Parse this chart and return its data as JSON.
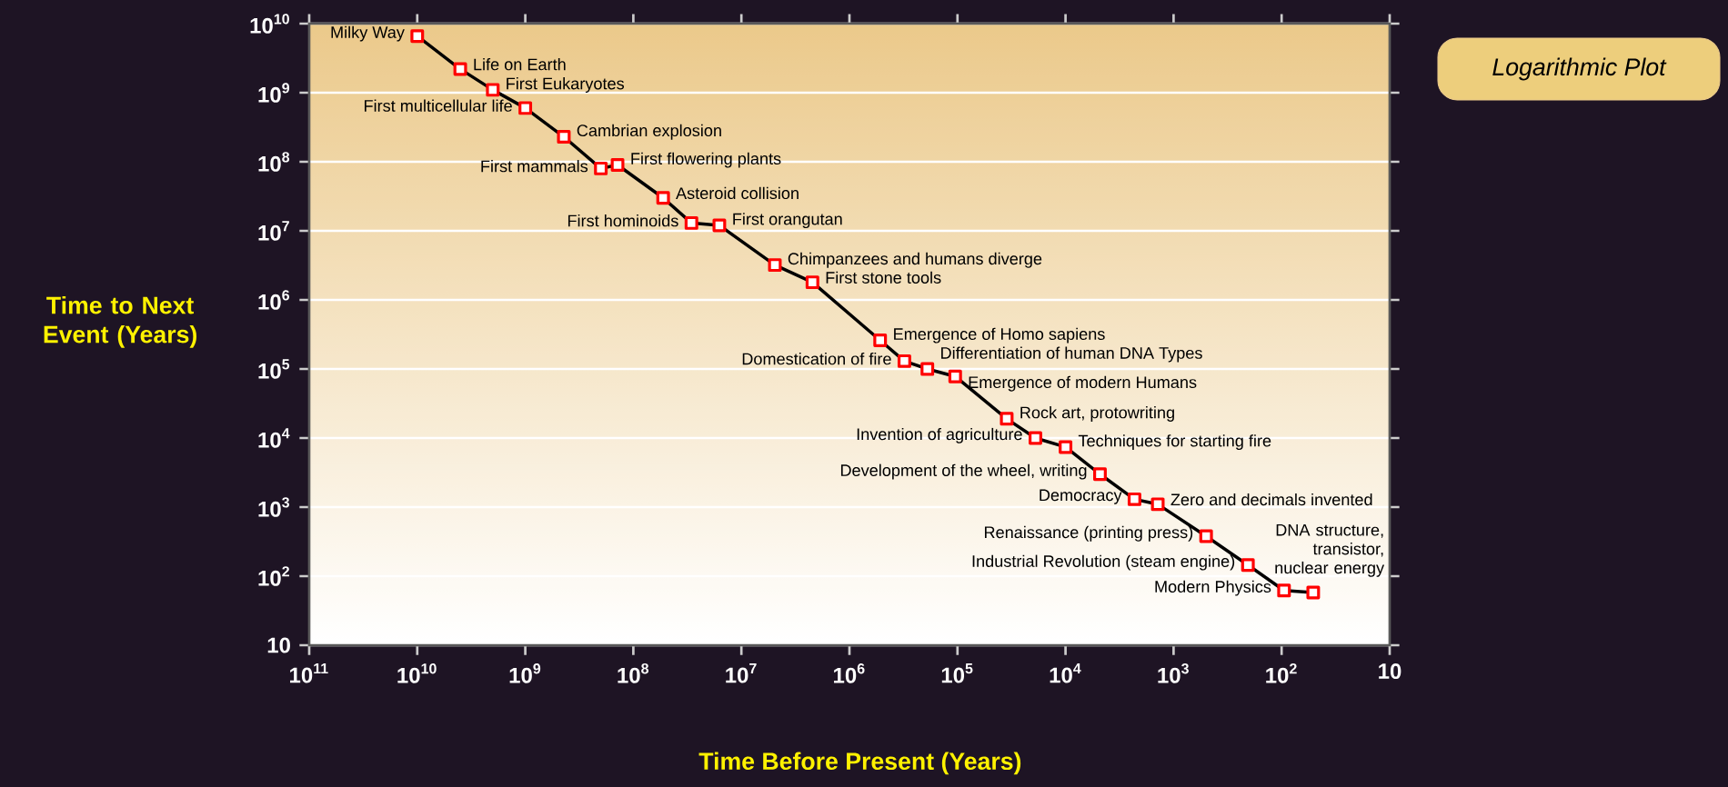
{
  "chart_data": {
    "type": "line",
    "xlabel": "Time Before Present (Years)",
    "ylabel": "Time to Next Event (Years)",
    "log": "xy",
    "grid": "y",
    "marker": "square",
    "line_style": "solid",
    "x": [
      10000000000.0,
      4000000000.0,
      2000000000.0,
      1000000000.0,
      440000000.0,
      200000000.0,
      140000000.0,
      53000000.0,
      29000000.0,
      16000000.0,
      4900000.0,
      2200000.0,
      520000.0,
      310000.0,
      190000.0,
      105000.0,
      35000.0,
      19000.0,
      10000.0,
      4800.0,
      2300.0,
      1400.0,
      500,
      205,
      95,
      51
    ],
    "series": [
      {
        "color": "#ff0000",
        "values": [
          6600000000.0,
          2200000000.0,
          1100000000.0,
          600000000.0,
          230000000.0,
          80000000.0,
          90000000.0,
          30000000.0,
          13000000.0,
          12000000.0,
          3200000.0,
          1800000.0,
          260000.0,
          130000.0,
          100000.0,
          78000.0,
          19000.0,
          10000.0,
          7400.0,
          3000.0,
          1300.0,
          1100.0,
          380,
          145,
          62,
          58
        ]
      }
    ],
    "xlim": [
      100000000000.0,
      10
    ],
    "ylim": [
      10,
      10000000000.0
    ],
    "xticks": [
      {
        "value": 100000000000.0,
        "label": "10$^{11}$"
      },
      {
        "value": 10000000000.0,
        "label": "10$^{10}$"
      },
      {
        "value": 1000000000.0,
        "label": "10$^{9}$"
      },
      {
        "value": 100000000.0,
        "label": "10$^{8}$"
      },
      {
        "value": 10000000.0,
        "label": "10$^{7}$"
      },
      {
        "value": 1000000.0,
        "label": "10$^{6}$"
      },
      {
        "value": 100000.0,
        "label": "10$^{5}$"
      },
      {
        "value": 10000.0,
        "label": "10$^{4}$"
      },
      {
        "value": 1000.0,
        "label": "10$^{3}$"
      },
      {
        "value": 100,
        "label": "10$^{2}$"
      },
      10
    ],
    "yticks": [
      10,
      {
        "value": 100,
        "label": "10$^{2}$"
      },
      {
        "value": 1000.0,
        "label": "10$^{3}$"
      },
      {
        "value": 10000.0,
        "label": "10$^{4}$"
      },
      {
        "value": 100000.0,
        "label": "10$^{5}$"
      },
      {
        "value": 1000000.0,
        "label": "10$^{6}$"
      },
      {
        "value": 10000000.0,
        "label": "10$^{7}$"
      },
      {
        "value": 100000000.0,
        "label": "10$^{8}$"
      },
      {
        "value": 1000000000.0,
        "label": "10$^{9}$"
      },
      {
        "value": 10000000000.0,
        "label": "10$^{10}$"
      }
    ],
    "annotations": [
      {
        "text": "Milky Way",
        "x": 10000000000.0,
        "y": 6600000000.0
      },
      {
        "text": "Life on Earth",
        "x": 4000000000.0,
        "y": 2200000000.0
      },
      {
        "text": "First Eukaryotes",
        "x": 2000000000.0,
        "y": 1100000000.0
      },
      {
        "text": "First multicellular life",
        "x": 1000000000.0,
        "y": 600000000.0
      },
      {
        "text": "Cambrian explosion",
        "x": 440000000.0,
        "y": 230000000.0
      },
      {
        "text": "First mammals",
        "x": 200000000.0,
        "y": 80000000.0
      },
      {
        "text": "First flowering plants",
        "x": 140000000.0,
        "y": 90000000.0
      },
      {
        "text": "Asteroid collision",
        "x": 53000000.0,
        "y": 30000000.0
      },
      {
        "text": "First hominoids",
        "x": 29000000.0,
        "y": 13000000.0
      },
      {
        "text": "First orangutan",
        "x": 16000000.0,
        "y": 12000000.0
      },
      {
        "text": "Chimpanzees and humans diverge",
        "x": 4900000.0,
        "y": 3200000.0
      },
      {
        "text": "First stone tools",
        "x": 2200000.0,
        "y": 1800000.0
      },
      {
        "text": "Emergence of Homo sapiens",
        "x": 520000.0,
        "y": 260000.0
      },
      {
        "text": "Domestication of fire",
        "x": 310000.0,
        "y": 130000.0
      },
      {
        "text": "Differentiation of human DNA Types",
        "x": 190000.0,
        "y": 100000.0
      },
      {
        "text": "Emergence of modern Humans",
        "x": 105000.0,
        "y": 78000.0
      },
      {
        "text": "Rock art, protowriting",
        "x": 35000.0,
        "y": 19000.0
      },
      {
        "text": "Invention of agriculture",
        "x": 19000.0,
        "y": 10000.0
      },
      {
        "text": "Techniques for starting fire",
        "x": 10000.0,
        "y": 7400.0
      },
      {
        "text": "Development of the wheel, writing",
        "x": 4800.0,
        "y": 3000.0
      },
      {
        "text": "Democracy",
        "x": 2300.0,
        "y": 1300.0
      },
      {
        "text": "Zero and decimals invented",
        "x": 1400.0,
        "y": 1100.0
      },
      {
        "text": "Renaissance (printing press)",
        "x": 500,
        "y": 380
      },
      {
        "text": "Industrial Revolution (steam engine)",
        "x": 205,
        "y": 145
      },
      {
        "text": "Modern Physics",
        "x": 95,
        "y": 62
      },
      {
        "text": "DNA structure, transistor, nuclear energy",
        "x": 51,
        "y": 58
      },
      "Logarithmic Plot"
    ]
  }
}
